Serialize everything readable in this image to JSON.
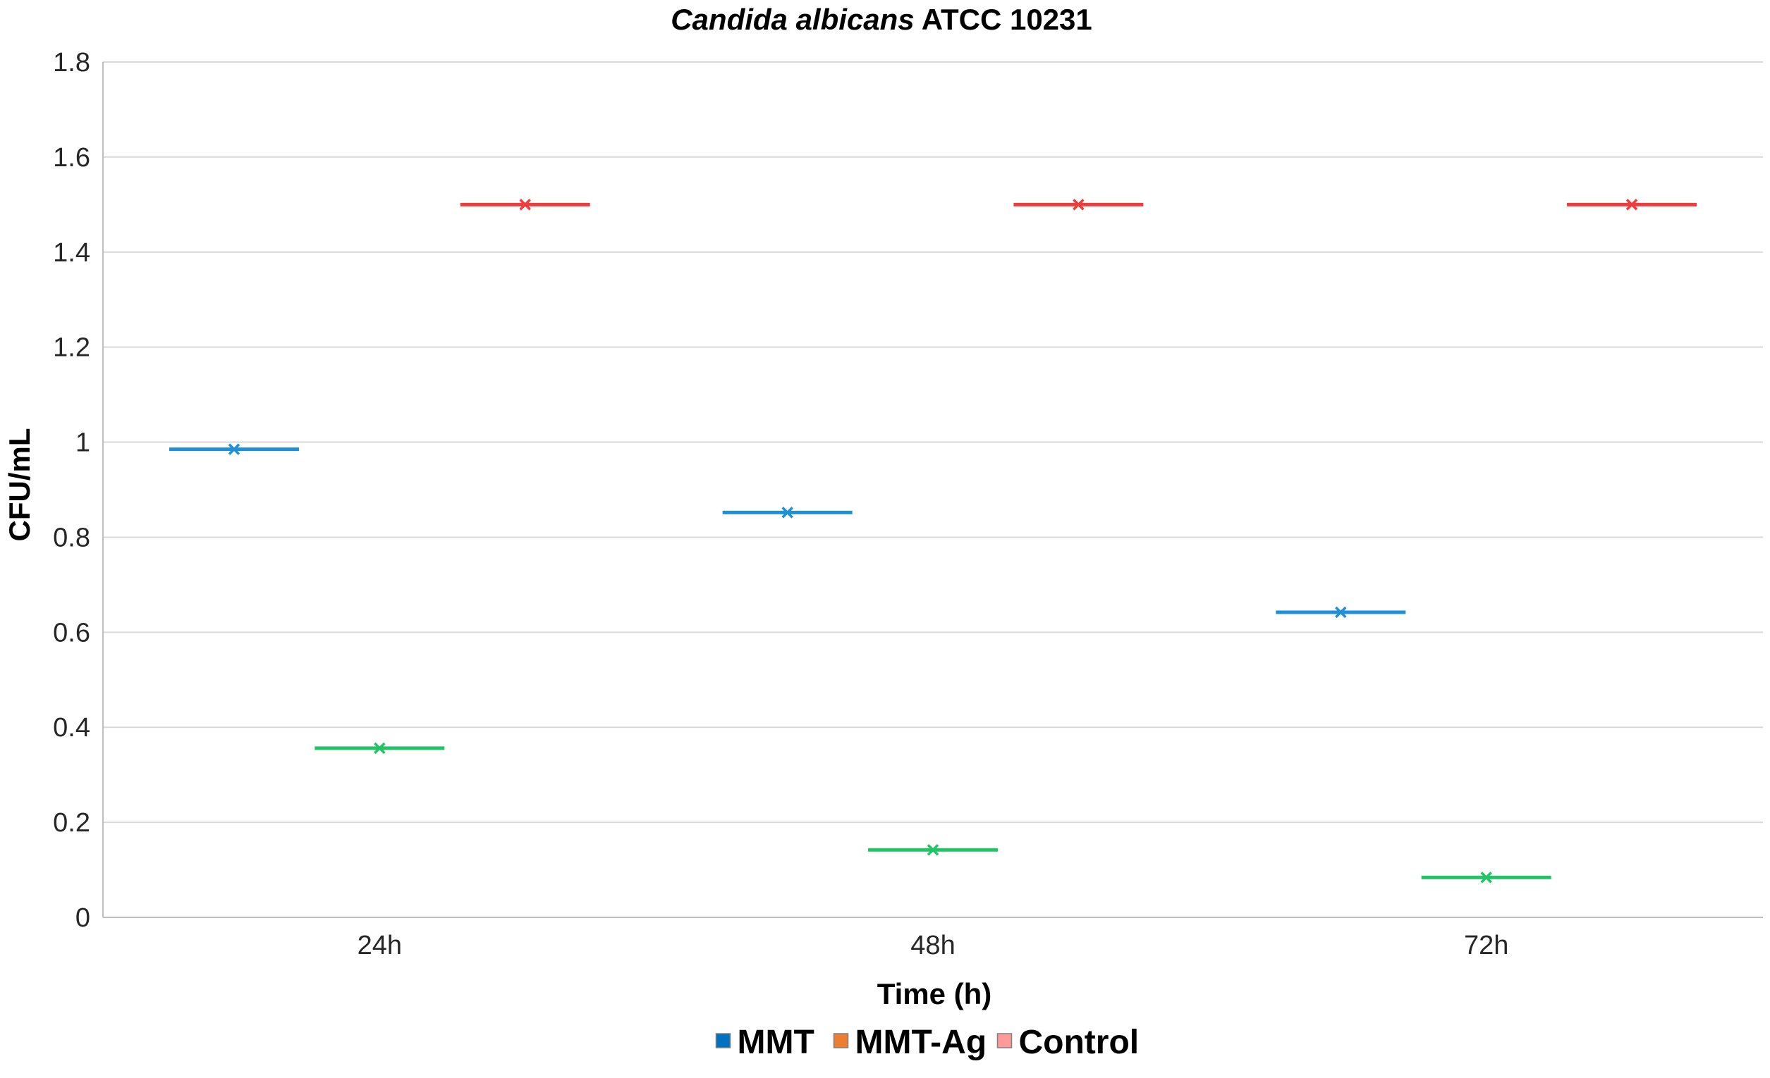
{
  "chart_data": {
    "type": "scatter",
    "title_italic": "Candida albicans",
    "title_rest": " ATCC 10231",
    "xlabel": "Time (h)",
    "ylabel": "CFU/mL",
    "categories": [
      "24h",
      "48h",
      "72h"
    ],
    "ylim": [
      0,
      1.8
    ],
    "yticks": [
      "0",
      "0.2",
      "0.4",
      "0.6",
      "0.8",
      "1",
      "1.2",
      "1.4",
      "1.6",
      "1.8"
    ],
    "grid": true,
    "legend_position": "bottom",
    "series": [
      {
        "name": "MMT",
        "color": "#1f8fd8",
        "legend_swatch": "#0070c0",
        "values": [
          0.985,
          0.852,
          0.642
        ]
      },
      {
        "name": "MMT-Ag",
        "color": "#22c466",
        "legend_swatch": "#ed7d31",
        "values": [
          0.356,
          0.142,
          0.084
        ]
      },
      {
        "name": "Control",
        "color": "#f03c3c",
        "legend_swatch": "#ff9a9a",
        "values": [
          1.5,
          1.5,
          1.5
        ]
      }
    ]
  }
}
